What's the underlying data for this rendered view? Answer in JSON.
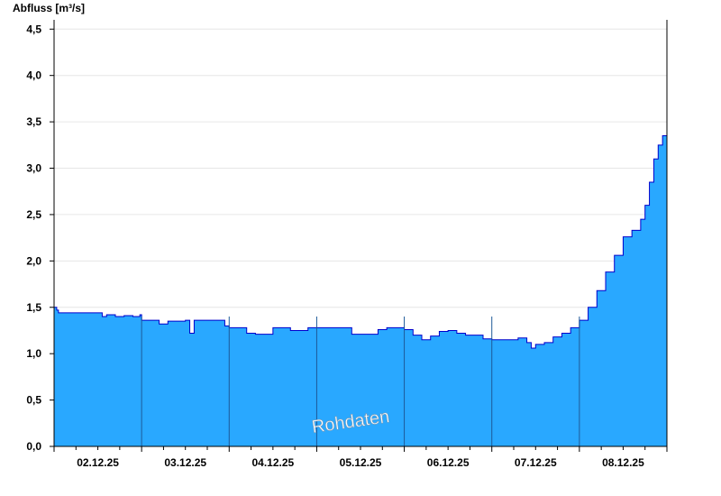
{
  "chart_data": {
    "type": "area",
    "ylabel": "Abfluss [m³/s]",
    "ylim": [
      0,
      4.6
    ],
    "yticks": [
      "0,0",
      "0,5",
      "1,0",
      "1,5",
      "2,0",
      "2,5",
      "3,0",
      "3,5",
      "4,0",
      "4,5"
    ],
    "ytick_values": [
      0,
      0.5,
      1.0,
      1.5,
      2.0,
      2.5,
      3.0,
      3.5,
      4.0,
      4.5
    ],
    "xticks": [
      "02.12.25",
      "03.12.25",
      "04.12.25",
      "05.12.25",
      "06.12.25",
      "07.12.25",
      "08.12.25"
    ],
    "xlim_days": [
      0,
      7
    ],
    "grid": "horizontal",
    "watermark": "Rohdaten",
    "colors": {
      "fill": "#29a8ff",
      "line": "#0000cc",
      "grid": "#e6e6e6",
      "day_separator": "#1e5a99"
    },
    "series": [
      {
        "x": [
          0,
          0.02,
          0.03,
          0.05,
          0.25,
          0.5,
          0.55,
          0.6,
          0.7,
          0.8,
          0.9,
          0.98,
          1.0,
          1.1,
          1.2,
          1.3,
          1.5,
          1.55,
          1.6,
          1.7,
          1.85,
          1.95,
          2.0,
          2.1,
          2.2,
          2.3,
          2.5,
          2.7,
          2.9,
          3.0,
          3.2,
          3.4,
          3.6,
          3.7,
          3.8,
          3.9,
          4.0,
          4.1,
          4.2,
          4.3,
          4.4,
          4.5,
          4.6,
          4.7,
          4.8,
          4.9,
          5.0,
          5.1,
          5.2,
          5.3,
          5.4,
          5.45,
          5.5,
          5.6,
          5.7,
          5.8,
          5.9,
          6.0,
          6.1,
          6.2,
          6.3,
          6.4,
          6.5,
          6.6,
          6.7,
          6.75,
          6.8,
          6.85,
          6.9,
          6.95,
          7.0
        ],
        "y": [
          1.5,
          1.5,
          1.47,
          1.44,
          1.44,
          1.44,
          1.4,
          1.42,
          1.4,
          1.41,
          1.4,
          1.42,
          1.36,
          1.36,
          1.32,
          1.35,
          1.36,
          1.22,
          1.36,
          1.36,
          1.36,
          1.3,
          1.28,
          1.28,
          1.22,
          1.21,
          1.28,
          1.25,
          1.28,
          1.28,
          1.28,
          1.21,
          1.21,
          1.26,
          1.28,
          1.28,
          1.26,
          1.2,
          1.15,
          1.19,
          1.24,
          1.25,
          1.22,
          1.2,
          1.2,
          1.16,
          1.15,
          1.15,
          1.15,
          1.17,
          1.12,
          1.06,
          1.1,
          1.12,
          1.18,
          1.22,
          1.28,
          1.36,
          1.5,
          1.68,
          1.88,
          2.06,
          2.26,
          2.33,
          2.45,
          2.6,
          2.85,
          3.1,
          3.25,
          3.35,
          3.42
        ]
      }
    ]
  }
}
